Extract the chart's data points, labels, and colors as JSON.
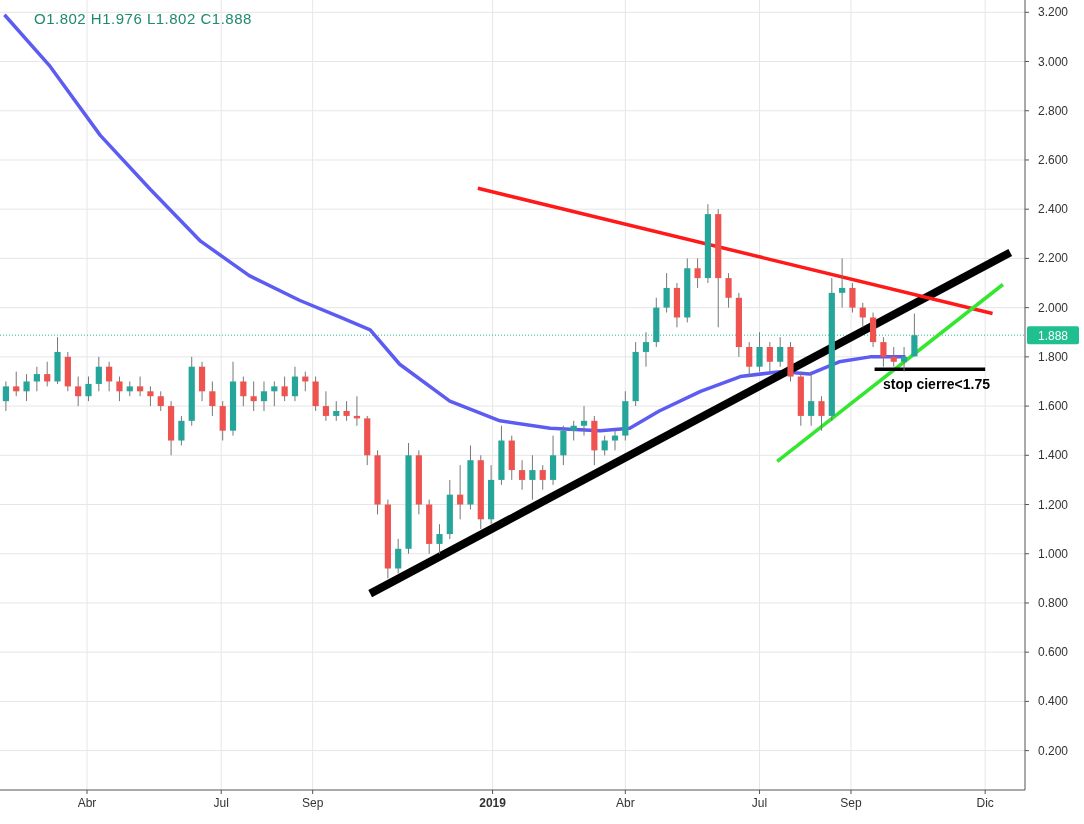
{
  "chart_data": {
    "type": "candlestick",
    "xlim": [
      "2018-02-01",
      "2019-12-28"
    ],
    "ylim": [
      0.04,
      3.25
    ],
    "xticks": [
      {
        "value": "2018-04-01",
        "label": "Abr"
      },
      {
        "value": "2018-07-01",
        "label": "Jul"
      },
      {
        "value": "2018-09-01",
        "label": "Sep"
      },
      {
        "value": "2019-01-01",
        "label": "2019"
      },
      {
        "value": "2019-04-01",
        "label": "Abr"
      },
      {
        "value": "2019-07-01",
        "label": "Jul"
      },
      {
        "value": "2019-09-01",
        "label": "Sep"
      },
      {
        "value": "2019-12-01",
        "label": "Dic"
      }
    ],
    "yticks": [
      {
        "value": 0.2,
        "label": "0.200"
      },
      {
        "value": 0.4,
        "label": "0.400"
      },
      {
        "value": 0.6,
        "label": "0.600"
      },
      {
        "value": 0.8,
        "label": "0.800"
      },
      {
        "value": 1.0,
        "label": "1.000"
      },
      {
        "value": 1.2,
        "label": "1.200"
      },
      {
        "value": 1.4,
        "label": "1.400"
      },
      {
        "value": 1.6,
        "label": "1.600"
      },
      {
        "value": 1.8,
        "label": "1.800"
      },
      {
        "value": 2.0,
        "label": "2.000"
      },
      {
        "value": 2.2,
        "label": "2.200"
      },
      {
        "value": 2.4,
        "label": "2.400"
      },
      {
        "value": 2.6,
        "label": "2.600"
      },
      {
        "value": 2.8,
        "label": "2.800"
      },
      {
        "value": 3.0,
        "label": "3.000"
      },
      {
        "value": 3.2,
        "label": "3.200"
      }
    ],
    "grid": true,
    "annotations": [
      "O1.802 H1.976 L1.802 C1.888",
      {
        "text": "stop cierre<1.75",
        "x": "2019-10-29",
        "y": 1.75
      }
    ],
    "ref_lines": [
      {
        "axis": "y",
        "value": 1.888,
        "label": "1.888",
        "color": "#1fbf8f",
        "line_style": "dotted"
      }
    ],
    "series": [
      {
        "type": "line",
        "color": "#5c5cf2",
        "x": [
          "2018-02-04",
          "2018-03-07",
          "2018-04-10",
          "2018-05-14",
          "2018-06-17",
          "2018-07-20",
          "2018-08-23",
          "2018-09-20",
          "2018-10-10",
          "2018-10-30",
          "2018-12-03",
          "2019-01-06",
          "2019-02-09",
          "2019-03-15",
          "2019-04-04",
          "2019-04-24",
          "2019-05-22",
          "2019-06-18",
          "2019-07-15",
          "2019-08-04",
          "2019-08-24",
          "2019-09-14",
          "2019-10-08"
        ],
        "values": [
          3.19,
          2.98,
          2.7,
          2.48,
          2.27,
          2.13,
          2.03,
          1.96,
          1.91,
          1.77,
          1.62,
          1.54,
          1.51,
          1.5,
          1.51,
          1.58,
          1.66,
          1.72,
          1.74,
          1.73,
          1.78,
          1.8,
          1.8
        ]
      },
      {
        "type": "line",
        "color": "#000000",
        "x": [
          "2018-10-10",
          "2019-12-18"
        ],
        "values": [
          0.838,
          2.224
        ]
      },
      {
        "type": "line",
        "color": "#ff1a1a",
        "x": [
          "2018-12-22",
          "2019-12-06"
        ],
        "values": [
          2.485,
          1.976
        ]
      },
      {
        "type": "line",
        "color": "#33e62e",
        "x": [
          "2019-07-13",
          "2019-12-13"
        ],
        "values": [
          1.375,
          2.094
        ]
      },
      {
        "type": "line",
        "color": "#000000",
        "x": [
          "2019-09-17",
          "2019-12-01"
        ],
        "values": [
          1.75,
          1.75
        ]
      },
      {
        "x": [
          "2018-02-05",
          "2018-02-12",
          "2018-02-19",
          "2018-02-26",
          "2018-03-05",
          "2018-03-12",
          "2018-03-19",
          "2018-03-26",
          "2018-04-02",
          "2018-04-09",
          "2018-04-16",
          "2018-04-23",
          "2018-04-30",
          "2018-05-07",
          "2018-05-14",
          "2018-05-21",
          "2018-05-28",
          "2018-06-04",
          "2018-06-11",
          "2018-06-18",
          "2018-06-25",
          "2018-07-02",
          "2018-07-09",
          "2018-07-16",
          "2018-07-23",
          "2018-07-30",
          "2018-08-06",
          "2018-08-13",
          "2018-08-20",
          "2018-08-27",
          "2018-09-03",
          "2018-09-10",
          "2018-09-17",
          "2018-09-24",
          "2018-10-01",
          "2018-10-08",
          "2018-10-15",
          "2018-10-22",
          "2018-10-29",
          "2018-11-05",
          "2018-11-12",
          "2018-11-19",
          "2018-11-26",
          "2018-12-03",
          "2018-12-10",
          "2018-12-17",
          "2018-12-24",
          "2018-12-31",
          "2019-01-07",
          "2019-01-14",
          "2019-01-21",
          "2019-01-28",
          "2019-02-04",
          "2019-02-11",
          "2019-02-18",
          "2019-02-25",
          "2019-03-04",
          "2019-03-11",
          "2019-03-18",
          "2019-03-25",
          "2019-04-01",
          "2019-04-08",
          "2019-04-15",
          "2019-04-22",
          "2019-04-29",
          "2019-05-06",
          "2019-05-13",
          "2019-05-20",
          "2019-05-27",
          "2019-06-03",
          "2019-06-10",
          "2019-06-17",
          "2019-06-24",
          "2019-07-01",
          "2019-07-08",
          "2019-07-15",
          "2019-07-22",
          "2019-07-29",
          "2019-08-05",
          "2019-08-12",
          "2019-08-19",
          "2019-08-26",
          "2019-09-02",
          "2019-09-09",
          "2019-09-16",
          "2019-09-23",
          "2019-09-30",
          "2019-10-07",
          "2019-10-14"
        ],
        "ohlc": [
          [
            1.62,
            1.7,
            1.58,
            1.68
          ],
          [
            1.68,
            1.74,
            1.64,
            1.66
          ],
          [
            1.66,
            1.73,
            1.62,
            1.7
          ],
          [
            1.7,
            1.76,
            1.66,
            1.73
          ],
          [
            1.73,
            1.78,
            1.68,
            1.7
          ],
          [
            1.7,
            1.88,
            1.69,
            1.82
          ],
          [
            1.8,
            1.82,
            1.66,
            1.68
          ],
          [
            1.68,
            1.72,
            1.6,
            1.64
          ],
          [
            1.64,
            1.72,
            1.62,
            1.69
          ],
          [
            1.69,
            1.8,
            1.66,
            1.76
          ],
          [
            1.76,
            1.78,
            1.66,
            1.7
          ],
          [
            1.7,
            1.72,
            1.62,
            1.66
          ],
          [
            1.66,
            1.7,
            1.64,
            1.68
          ],
          [
            1.68,
            1.72,
            1.64,
            1.66
          ],
          [
            1.66,
            1.68,
            1.6,
            1.64
          ],
          [
            1.64,
            1.66,
            1.58,
            1.6
          ],
          [
            1.6,
            1.62,
            1.4,
            1.46
          ],
          [
            1.46,
            1.56,
            1.44,
            1.54
          ],
          [
            1.54,
            1.8,
            1.52,
            1.76
          ],
          [
            1.76,
            1.78,
            1.62,
            1.66
          ],
          [
            1.66,
            1.7,
            1.56,
            1.6
          ],
          [
            1.6,
            1.62,
            1.46,
            1.5
          ],
          [
            1.5,
            1.78,
            1.48,
            1.7
          ],
          [
            1.7,
            1.72,
            1.6,
            1.64
          ],
          [
            1.64,
            1.7,
            1.58,
            1.62
          ],
          [
            1.62,
            1.7,
            1.58,
            1.66
          ],
          [
            1.66,
            1.7,
            1.6,
            1.68
          ],
          [
            1.68,
            1.72,
            1.62,
            1.64
          ],
          [
            1.64,
            1.76,
            1.62,
            1.72
          ],
          [
            1.72,
            1.74,
            1.66,
            1.7
          ],
          [
            1.7,
            1.72,
            1.58,
            1.6
          ],
          [
            1.6,
            1.66,
            1.54,
            1.56
          ],
          [
            1.56,
            1.62,
            1.54,
            1.58
          ],
          [
            1.58,
            1.62,
            1.54,
            1.56
          ],
          [
            1.56,
            1.64,
            1.52,
            1.55
          ],
          [
            1.55,
            1.56,
            1.36,
            1.4
          ],
          [
            1.4,
            1.42,
            1.16,
            1.2
          ],
          [
            1.2,
            1.22,
            0.9,
            0.94
          ],
          [
            0.94,
            1.06,
            0.92,
            1.02
          ],
          [
            1.02,
            1.45,
            1.0,
            1.4
          ],
          [
            1.4,
            1.42,
            1.16,
            1.2
          ],
          [
            1.2,
            1.22,
            1.0,
            1.04
          ],
          [
            1.04,
            1.12,
            1.0,
            1.08
          ],
          [
            1.08,
            1.3,
            1.06,
            1.24
          ],
          [
            1.24,
            1.36,
            1.14,
            1.2
          ],
          [
            1.2,
            1.44,
            1.18,
            1.38
          ],
          [
            1.38,
            1.4,
            1.1,
            1.14
          ],
          [
            1.14,
            1.36,
            1.12,
            1.3
          ],
          [
            1.3,
            1.52,
            1.28,
            1.46
          ],
          [
            1.46,
            1.48,
            1.3,
            1.34
          ],
          [
            1.34,
            1.38,
            1.26,
            1.3
          ],
          [
            1.3,
            1.4,
            1.22,
            1.34
          ],
          [
            1.34,
            1.36,
            1.26,
            1.3
          ],
          [
            1.3,
            1.48,
            1.28,
            1.4
          ],
          [
            1.4,
            1.52,
            1.36,
            1.5
          ],
          [
            1.5,
            1.54,
            1.46,
            1.52
          ],
          [
            1.52,
            1.6,
            1.48,
            1.54
          ],
          [
            1.54,
            1.56,
            1.36,
            1.42
          ],
          [
            1.42,
            1.48,
            1.4,
            1.46
          ],
          [
            1.46,
            1.5,
            1.42,
            1.48
          ],
          [
            1.48,
            1.66,
            1.46,
            1.62
          ],
          [
            1.62,
            1.86,
            1.6,
            1.82
          ],
          [
            1.82,
            1.9,
            1.76,
            1.86
          ],
          [
            1.86,
            2.04,
            1.84,
            2.0
          ],
          [
            2.0,
            2.14,
            1.98,
            2.08
          ],
          [
            2.08,
            2.1,
            1.92,
            1.96
          ],
          [
            1.96,
            2.2,
            1.94,
            2.16
          ],
          [
            2.16,
            2.2,
            2.08,
            2.12
          ],
          [
            2.12,
            2.42,
            2.1,
            2.38
          ],
          [
            2.38,
            2.4,
            1.92,
            2.12
          ],
          [
            2.12,
            2.14,
            2.0,
            2.04
          ],
          [
            2.04,
            2.06,
            1.8,
            1.84
          ],
          [
            1.84,
            1.86,
            1.72,
            1.76
          ],
          [
            1.76,
            1.9,
            1.74,
            1.84
          ],
          [
            1.84,
            1.86,
            1.74,
            1.78
          ],
          [
            1.78,
            1.88,
            1.76,
            1.84
          ],
          [
            1.84,
            1.86,
            1.7,
            1.72
          ],
          [
            1.72,
            1.74,
            1.52,
            1.56
          ],
          [
            1.56,
            1.74,
            1.52,
            1.62
          ],
          [
            1.62,
            1.64,
            1.5,
            1.56
          ],
          [
            1.56,
            2.12,
            1.54,
            2.06
          ],
          [
            2.06,
            2.2,
            2.0,
            2.08
          ],
          [
            2.08,
            2.1,
            1.98,
            2.0
          ],
          [
            2.0,
            2.02,
            1.92,
            1.96
          ],
          [
            1.96,
            1.98,
            1.84,
            1.86
          ],
          [
            1.86,
            1.88,
            1.76,
            1.8
          ],
          [
            1.8,
            1.84,
            1.76,
            1.78
          ],
          [
            1.78,
            1.84,
            1.74,
            1.8
          ],
          [
            1.802,
            1.976,
            1.802,
            1.888
          ]
        ]
      }
    ]
  }
}
